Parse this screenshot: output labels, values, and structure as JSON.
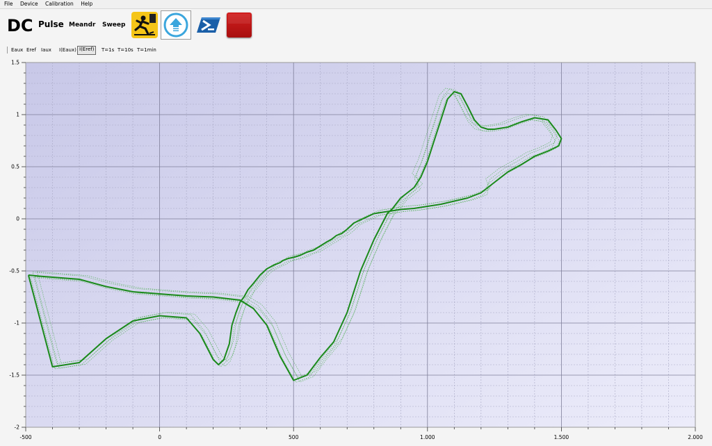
{
  "menu": [
    "File",
    "Device",
    "Calibration",
    "Help"
  ],
  "modes": {
    "dc": "DC",
    "pulse": "Pulse",
    "meandr": "Meandr",
    "sweep": "Sweep"
  },
  "toolbar_icons": [
    "caution-slip-icon",
    "upload-arrow-icon",
    "powershell-icon",
    "stop-icon"
  ],
  "channels": [
    "Eaux",
    "Eref",
    "Iaux",
    "I(Eaux)",
    "I(Eref)",
    "T=1s",
    "T=10s",
    "T=1min"
  ],
  "active_channel": "I(Eref)",
  "colors": {
    "plot_bg_top": "#c8c8e8",
    "plot_bg_bottom": "#e8e8f8",
    "trace": "#1a8a1a",
    "button_stop": "#c41616",
    "button_caution": "#f5c518"
  },
  "chart_data": {
    "type": "line",
    "title": "",
    "xlabel": "",
    "ylabel": "",
    "xlim": [
      -500,
      2000
    ],
    "ylim": [
      -2,
      1.5
    ],
    "x_ticks": [
      -500,
      0,
      500,
      1000,
      1500,
      2000
    ],
    "x_tick_labels": [
      "-500",
      "0",
      "500",
      "1.000",
      "1.500",
      "2.000"
    ],
    "y_ticks": [
      1.5,
      1,
      0.5,
      0,
      -0.5,
      -1,
      -1.5,
      -2
    ],
    "y_tick_labels": [
      "1.5",
      "1",
      "0.5",
      "0",
      "-0.5",
      "-1",
      "-1.5",
      "-2"
    ],
    "grid": true,
    "series": [
      {
        "style": "solid",
        "x": [
          -490,
          -450,
          -400,
          -300,
          -200,
          -100,
          0,
          100,
          200,
          300,
          350,
          400,
          450,
          500,
          550,
          600,
          650,
          700,
          750,
          800,
          850,
          870,
          900,
          950,
          975,
          1000,
          1025,
          1050,
          1075,
          1100,
          1125,
          1150,
          1175,
          1200,
          1225,
          1250,
          1275,
          1300,
          1350,
          1400,
          1450,
          1480,
          1500,
          1490,
          1450,
          1400,
          1350,
          1300,
          1250,
          1200,
          1150,
          1100,
          1050,
          1000,
          950,
          900,
          850,
          800,
          775,
          750,
          725,
          700,
          680,
          660,
          650,
          640,
          625,
          600,
          575,
          550,
          525,
          500,
          480,
          460,
          450,
          430,
          400,
          375,
          350,
          330,
          315,
          300,
          285,
          270,
          260,
          240,
          220,
          200,
          150,
          100,
          0,
          -100,
          -200,
          -300,
          -400,
          -490
        ],
        "y": [
          -0.54,
          -0.55,
          -0.56,
          -0.58,
          -0.65,
          -0.7,
          -0.72,
          -0.74,
          -0.75,
          -0.78,
          -0.86,
          -1.02,
          -1.32,
          -1.55,
          -1.5,
          -1.33,
          -1.18,
          -0.9,
          -0.5,
          -0.2,
          0.05,
          0.1,
          0.2,
          0.3,
          0.4,
          0.55,
          0.75,
          0.95,
          1.15,
          1.22,
          1.2,
          1.08,
          0.95,
          0.88,
          0.86,
          0.86,
          0.87,
          0.88,
          0.93,
          0.97,
          0.95,
          0.85,
          0.77,
          0.7,
          0.65,
          0.6,
          0.52,
          0.45,
          0.35,
          0.25,
          0.2,
          0.17,
          0.14,
          0.12,
          0.1,
          0.09,
          0.07,
          0.05,
          0.02,
          -0.01,
          -0.04,
          -0.1,
          -0.14,
          -0.16,
          -0.18,
          -0.2,
          -0.22,
          -0.26,
          -0.3,
          -0.32,
          -0.35,
          -0.37,
          -0.38,
          -0.4,
          -0.42,
          -0.44,
          -0.48,
          -0.54,
          -0.62,
          -0.68,
          -0.75,
          -0.8,
          -0.9,
          -1.02,
          -1.2,
          -1.35,
          -1.4,
          -1.35,
          -1.1,
          -0.95,
          -0.93,
          -0.98,
          -1.15,
          -1.38,
          -1.42,
          -0.54
        ]
      }
    ]
  }
}
